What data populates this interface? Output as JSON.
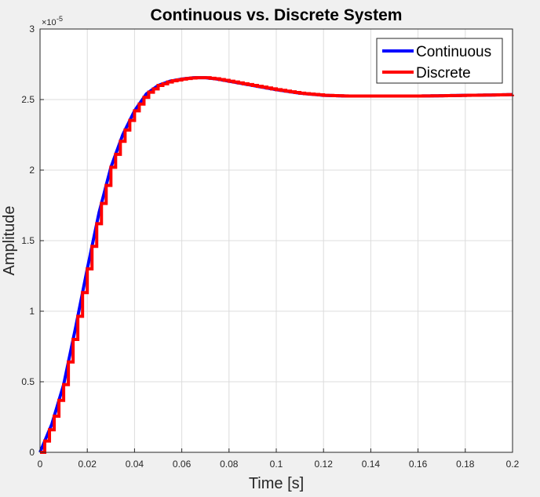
{
  "chart_data": {
    "type": "line",
    "title": "Continuous vs. Discrete System",
    "xlabel": "Time [s]",
    "ylabel": "Amplitude",
    "y_exponent": "×10",
    "y_exponent_power": "-5",
    "xlim": [
      0,
      0.2
    ],
    "ylim": [
      0,
      3
    ],
    "xticks": [
      0,
      0.02,
      0.04,
      0.06,
      0.08,
      0.1,
      0.12,
      0.14,
      0.16,
      0.18,
      0.2
    ],
    "xtick_labels": [
      "0",
      "0.02",
      "0.04",
      "0.06",
      "0.08",
      "0.1",
      "0.12",
      "0.14",
      "0.16",
      "0.18",
      "0.2"
    ],
    "yticks": [
      0,
      0.5,
      1,
      1.5,
      2,
      2.5,
      3
    ],
    "ytick_labels": [
      "0",
      "0.5",
      "1",
      "1.5",
      "2",
      "2.5",
      "3"
    ],
    "grid": true,
    "legend_position": "top-right",
    "sample_period": 0.002,
    "series": [
      {
        "name": "Continuous",
        "color": "#0000ff",
        "style": "line",
        "x": [
          0,
          0.005,
          0.01,
          0.015,
          0.02,
          0.025,
          0.03,
          0.035,
          0.04,
          0.045,
          0.05,
          0.055,
          0.06,
          0.065,
          0.07,
          0.075,
          0.08,
          0.09,
          0.1,
          0.11,
          0.12,
          0.13,
          0.14,
          0.15,
          0.16,
          0.17,
          0.18,
          0.19,
          0.2
        ],
        "y": [
          0,
          0.2,
          0.48,
          0.88,
          1.3,
          1.7,
          2.02,
          2.25,
          2.42,
          2.54,
          2.6,
          2.63,
          2.645,
          2.655,
          2.655,
          2.645,
          2.63,
          2.6,
          2.57,
          2.545,
          2.53,
          2.525,
          2.525,
          2.525,
          2.525,
          2.527,
          2.53,
          2.532,
          2.535
        ]
      },
      {
        "name": "Discrete",
        "color": "#ff0000",
        "style": "stairs",
        "x": [
          0,
          0.005,
          0.01,
          0.015,
          0.02,
          0.025,
          0.03,
          0.035,
          0.04,
          0.045,
          0.05,
          0.055,
          0.06,
          0.065,
          0.07,
          0.075,
          0.08,
          0.09,
          0.1,
          0.11,
          0.12,
          0.13,
          0.14,
          0.15,
          0.16,
          0.17,
          0.18,
          0.19,
          0.2
        ],
        "y": [
          0,
          0.2,
          0.48,
          0.88,
          1.3,
          1.7,
          2.02,
          2.25,
          2.42,
          2.54,
          2.6,
          2.63,
          2.645,
          2.655,
          2.655,
          2.645,
          2.63,
          2.6,
          2.57,
          2.545,
          2.53,
          2.525,
          2.525,
          2.525,
          2.525,
          2.527,
          2.53,
          2.532,
          2.535
        ]
      }
    ]
  }
}
